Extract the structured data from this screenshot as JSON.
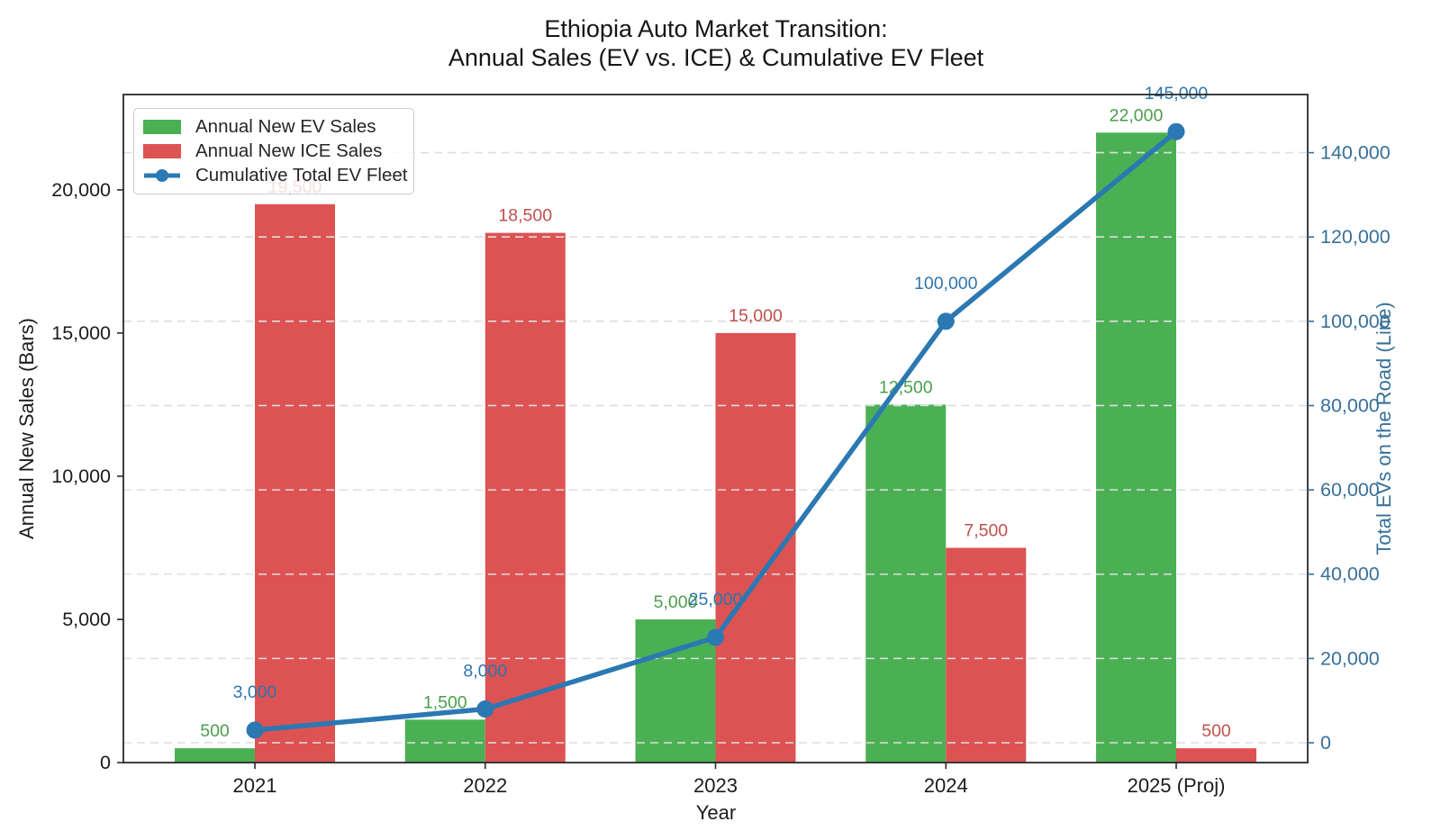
{
  "chart_data": {
    "type": "combo-bar-line",
    "title_line1": "Ethiopia Auto Market Transition:",
    "title_line2": "Annual Sales (EV vs. ICE) & Cumulative EV Fleet",
    "xlabel": "Year",
    "ylabel_left": "Annual New Sales (Bars)",
    "ylabel_right": "Total EVs on the Road (Line)",
    "categories": [
      "2021",
      "2022",
      "2023",
      "2024",
      "2025 (Proj)"
    ],
    "series": [
      {
        "name": "Annual New EV Sales",
        "type": "bar",
        "axis": "left",
        "color": "#4bb054",
        "label_color": "#4a9e4d",
        "values": [
          500,
          1500,
          5000,
          12500,
          22000
        ],
        "labels": [
          "500",
          "1,500",
          "5,000",
          "12,500",
          "22,000"
        ]
      },
      {
        "name": "Annual New ICE Sales",
        "type": "bar",
        "axis": "left",
        "color": "#dd5353",
        "label_color": "#c0504e",
        "values": [
          19500,
          18500,
          15000,
          7500,
          500
        ],
        "labels": [
          "19,500",
          "18,500",
          "15,000",
          "7,500",
          "500"
        ]
      },
      {
        "name": "Cumulative Total EV Fleet",
        "type": "line",
        "axis": "right",
        "color": "#2b78b2",
        "label_color": "#2e75ac",
        "values": [
          3000,
          8000,
          25000,
          100000,
          145000
        ],
        "labels": [
          "3,000",
          "8,000",
          "25,000",
          "100,000",
          "145,000"
        ]
      }
    ],
    "left_axis": {
      "ticks": [
        0,
        5000,
        10000,
        15000,
        20000
      ],
      "tick_labels": [
        "0",
        "5,000",
        "10,000",
        "15,000",
        "20,000"
      ],
      "range": [
        0,
        23330
      ],
      "color": "#1c1c1c"
    },
    "right_axis": {
      "ticks": [
        0,
        20000,
        40000,
        60000,
        80000,
        100000,
        120000,
        140000
      ],
      "tick_labels": [
        "0",
        "20,000",
        "40,000",
        "60,000",
        "80,000",
        "100,000",
        "120,000",
        "140,000"
      ],
      "range": [
        -4700,
        153800
      ],
      "color": "#37709a"
    },
    "grid": {
      "style": "dashed",
      "color": "#dedede",
      "follows": "right-axis-ticks"
    },
    "legend": {
      "position": "upper-left"
    }
  }
}
